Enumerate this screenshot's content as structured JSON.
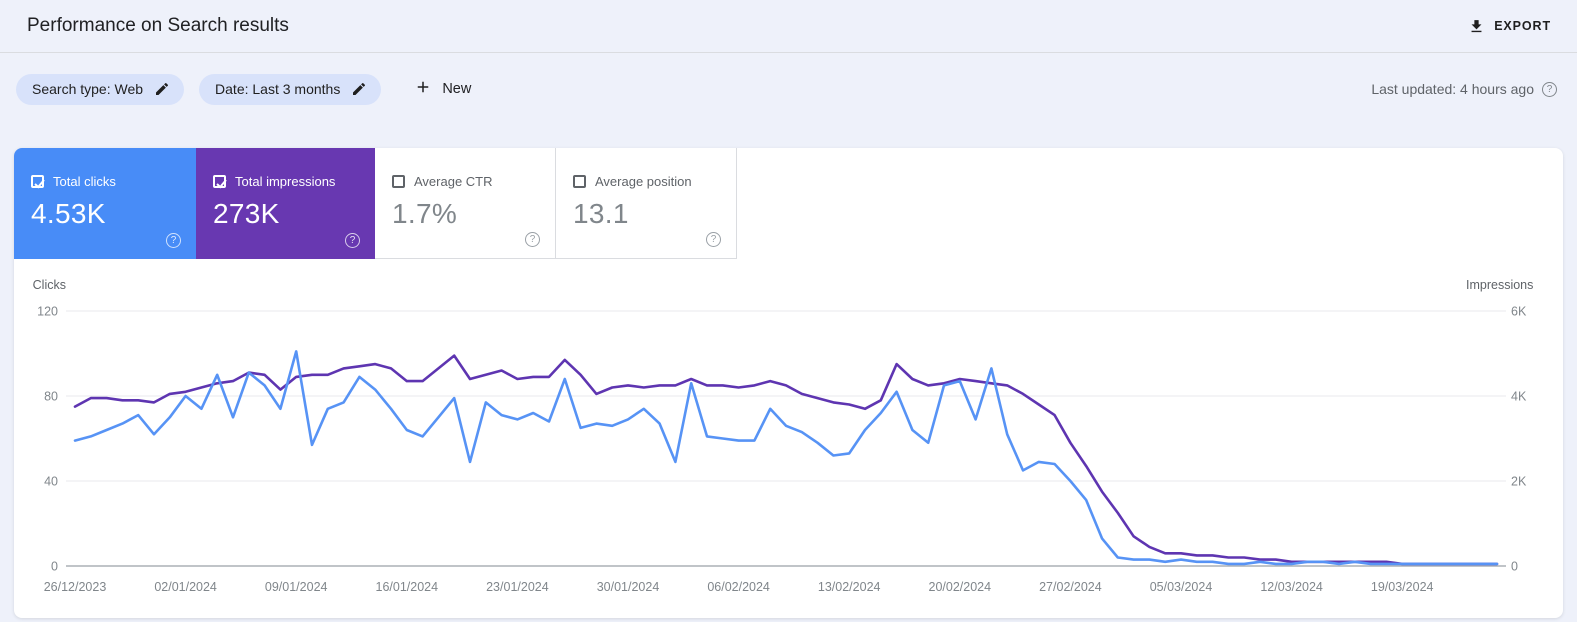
{
  "header": {
    "title": "Performance on Search results",
    "export_label": "EXPORT"
  },
  "filters": {
    "chips": [
      {
        "label": "Search type: Web"
      },
      {
        "label": "Date: Last 3 months"
      }
    ],
    "new_label": "New",
    "last_updated": "Last updated: 4 hours ago",
    "help_glyph": "?"
  },
  "cards": [
    {
      "label": "Total clicks",
      "value": "4.53K",
      "checked": true,
      "bg": "#488cf7",
      "text_color": "#ffffff",
      "help_glyph": "?"
    },
    {
      "label": "Total impressions",
      "value": "273K",
      "checked": true,
      "bg": "#6838b1",
      "text_color": "#ffffff",
      "help_glyph": "?"
    },
    {
      "label": "Average CTR",
      "value": "1.7%",
      "checked": false,
      "bg": "#ffffff",
      "text_color": "#80868b",
      "help_glyph": "?"
    },
    {
      "label": "Average position",
      "value": "13.1",
      "checked": false,
      "bg": "#ffffff",
      "text_color": "#80868b",
      "help_glyph": "?"
    }
  ],
  "chart_data": {
    "type": "line",
    "title": "Performance on Search results",
    "grid": true,
    "legend_position": "none",
    "left_axis": {
      "label": "Clicks",
      "ticks": [
        "120",
        "80",
        "40",
        "0"
      ],
      "min": 0,
      "max": 120
    },
    "right_axis": {
      "label": "Impressions",
      "ticks": [
        "6K",
        "4K",
        "2K",
        "0"
      ],
      "min": 0,
      "max": 6000
    },
    "x_tick_labels": [
      "26/12/2023",
      "02/01/2024",
      "09/01/2024",
      "16/01/2024",
      "23/01/2024",
      "30/01/2024",
      "06/02/2024",
      "13/02/2024",
      "20/02/2024",
      "27/02/2024",
      "05/03/2024",
      "12/03/2024",
      "19/03/2024"
    ],
    "x_start_date": "26/12/2023",
    "x_interval": "daily",
    "series": [
      {
        "name": "Impressions",
        "axis": "right",
        "color": "#5e35b1",
        "values": [
          3750,
          3950,
          3950,
          3900,
          3900,
          3850,
          4050,
          4100,
          4200,
          4300,
          4350,
          4550,
          4500,
          4150,
          4450,
          4500,
          4500,
          4650,
          4700,
          4750,
          4650,
          4350,
          4350,
          4650,
          4950,
          4400,
          4500,
          4600,
          4400,
          4450,
          4450,
          4850,
          4500,
          4050,
          4200,
          4250,
          4200,
          4250,
          4250,
          4400,
          4250,
          4250,
          4200,
          4250,
          4350,
          4250,
          4050,
          3950,
          3850,
          3800,
          3700,
          3900,
          4750,
          4400,
          4250,
          4300,
          4400,
          4350,
          4300,
          4250,
          4050,
          3800,
          3550,
          2900,
          2350,
          1750,
          1250,
          700,
          450,
          300,
          300,
          250,
          250,
          200,
          200,
          150,
          150,
          100,
          100,
          100,
          100,
          100,
          100,
          100,
          50,
          50,
          50,
          50,
          50,
          50,
          50
        ]
      },
      {
        "name": "Clicks",
        "axis": "left",
        "color": "#5793f5",
        "values": [
          59,
          61,
          64,
          67,
          71,
          62,
          70,
          80,
          74,
          90,
          70,
          91,
          85,
          74,
          101,
          57,
          74,
          77,
          89,
          83,
          74,
          64,
          61,
          70,
          79,
          49,
          77,
          71,
          69,
          72,
          68,
          88,
          65,
          67,
          66,
          69,
          74,
          67,
          49,
          86,
          61,
          60,
          59,
          59,
          74,
          66,
          63,
          58,
          52,
          53,
          64,
          72,
          82,
          64,
          58,
          85,
          87,
          69,
          93,
          62,
          45,
          49,
          48,
          40,
          31,
          13,
          4,
          3,
          3,
          2,
          3,
          2,
          2,
          1,
          1,
          2,
          1,
          1,
          2,
          2,
          1,
          2,
          1,
          1,
          1,
          1,
          1,
          1,
          1,
          1,
          1
        ]
      }
    ]
  }
}
